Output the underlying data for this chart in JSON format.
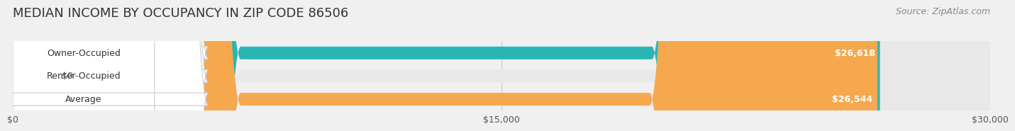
{
  "title": "MEDIAN INCOME BY OCCUPANCY IN ZIP CODE 86506",
  "source": "Source: ZipAtlas.com",
  "categories": [
    "Owner-Occupied",
    "Renter-Occupied",
    "Average"
  ],
  "values": [
    26618,
    0,
    26544
  ],
  "bar_colors": [
    "#2ab5b5",
    "#b8a0c8",
    "#f5a84e"
  ],
  "bar_labels": [
    "$26,618",
    "$0",
    "$26,544"
  ],
  "xlim": [
    0,
    30000
  ],
  "xticks": [
    0,
    15000,
    30000
  ],
  "xtick_labels": [
    "$0",
    "$15,000",
    "$30,000"
  ],
  "background_color": "#f0f0f0",
  "bar_background_color": "#e8e8e8",
  "title_fontsize": 13,
  "source_fontsize": 9,
  "label_fontsize": 9,
  "value_fontsize": 9
}
